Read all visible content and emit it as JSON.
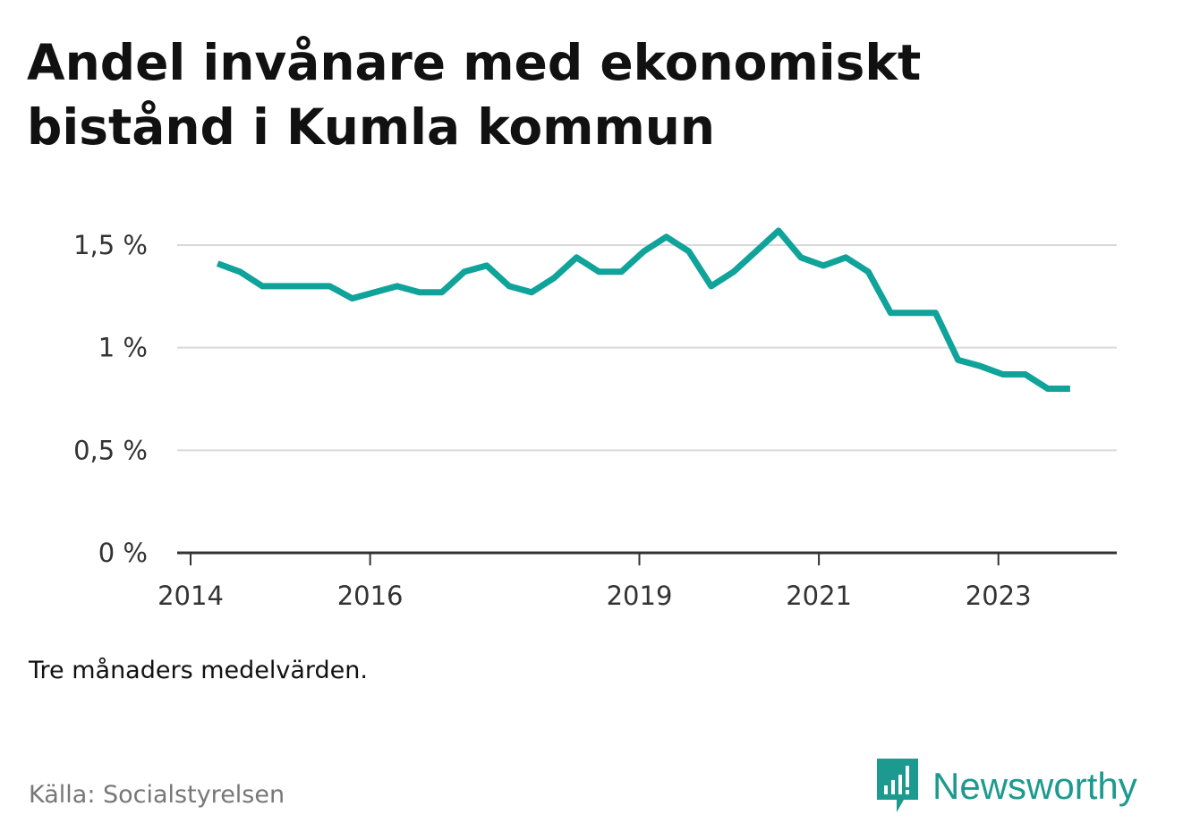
{
  "title": "Andel invånare med ekonomiskt bistånd i Kumla kommun",
  "note": "Tre månaders medelvärden.",
  "source": "Källa: Socialstyrelsen",
  "brand": {
    "name": "Newsworthy",
    "logo_icon": "newsworthy-bar-chart-icon"
  },
  "colors": {
    "line": "#0fa39a",
    "grid": "#d9d9d9",
    "axis": "#333333",
    "brand": "#1d9a8f"
  },
  "chart_data": {
    "type": "line",
    "title": "Andel invånare med ekonomiskt bistånd i Kumla kommun",
    "xlabel": "",
    "ylabel": "",
    "ylim": [
      0,
      1.5
    ],
    "yticks": [
      {
        "value": 0,
        "label": "0 %"
      },
      {
        "value": 0.5,
        "label": "0,5 %"
      },
      {
        "value": 1,
        "label": "1 %"
      },
      {
        "value": 1.5,
        "label": "1,5 %"
      }
    ],
    "xlim": [
      2014,
      2024.2
    ],
    "xticks": [
      {
        "value": 2014,
        "label": "2014"
      },
      {
        "value": 2016,
        "label": "2016"
      },
      {
        "value": 2019,
        "label": "2019"
      },
      {
        "value": 2021,
        "label": "2021"
      },
      {
        "value": 2023,
        "label": "2023"
      }
    ],
    "grid": true,
    "series": [
      {
        "points": [
          [
            2014.3,
            1.41
          ],
          [
            2014.55,
            1.37
          ],
          [
            2014.8,
            1.3
          ],
          [
            2015.05,
            1.3
          ],
          [
            2015.3,
            1.3
          ],
          [
            2015.55,
            1.3
          ],
          [
            2015.8,
            1.24
          ],
          [
            2016.05,
            1.27
          ],
          [
            2016.3,
            1.3
          ],
          [
            2016.55,
            1.27
          ],
          [
            2016.8,
            1.27
          ],
          [
            2017.05,
            1.37
          ],
          [
            2017.3,
            1.4
          ],
          [
            2017.55,
            1.3
          ],
          [
            2017.8,
            1.27
          ],
          [
            2018.05,
            1.34
          ],
          [
            2018.3,
            1.44
          ],
          [
            2018.55,
            1.37
          ],
          [
            2018.8,
            1.37
          ],
          [
            2019.05,
            1.47
          ],
          [
            2019.3,
            1.54
          ],
          [
            2019.55,
            1.47
          ],
          [
            2019.8,
            1.3
          ],
          [
            2020.05,
            1.37
          ],
          [
            2020.3,
            1.47
          ],
          [
            2020.55,
            1.57
          ],
          [
            2020.8,
            1.44
          ],
          [
            2021.05,
            1.4
          ],
          [
            2021.3,
            1.44
          ],
          [
            2021.55,
            1.37
          ],
          [
            2021.8,
            1.17
          ],
          [
            2022.05,
            1.17
          ],
          [
            2022.3,
            1.17
          ],
          [
            2022.55,
            0.94
          ],
          [
            2022.8,
            0.91
          ],
          [
            2023.05,
            0.87
          ],
          [
            2023.3,
            0.87
          ],
          [
            2023.55,
            0.8
          ],
          [
            2023.8,
            0.8
          ]
        ]
      }
    ]
  }
}
